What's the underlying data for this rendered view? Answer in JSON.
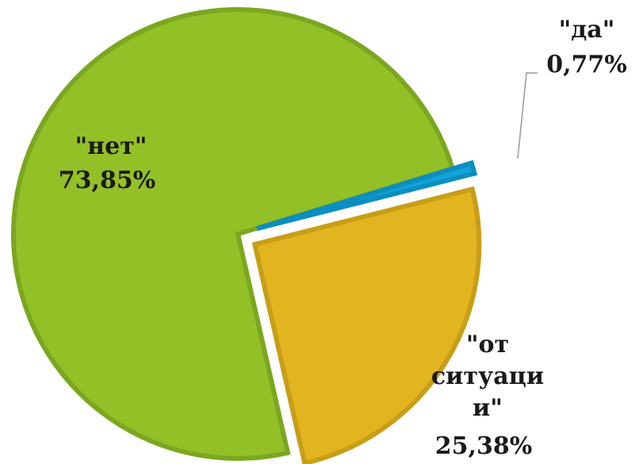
{
  "chart_data": {
    "type": "pie",
    "categories": [
      "\"да\"",
      "\"от ситуации\"",
      "\"нет\""
    ],
    "values": [
      0.77,
      25.38,
      73.85
    ],
    "value_labels": [
      "0,77%",
      "25,38%",
      "73,85%"
    ],
    "colors": [
      "#12a3d8",
      "#e2b41f",
      "#93c027"
    ]
  }
}
